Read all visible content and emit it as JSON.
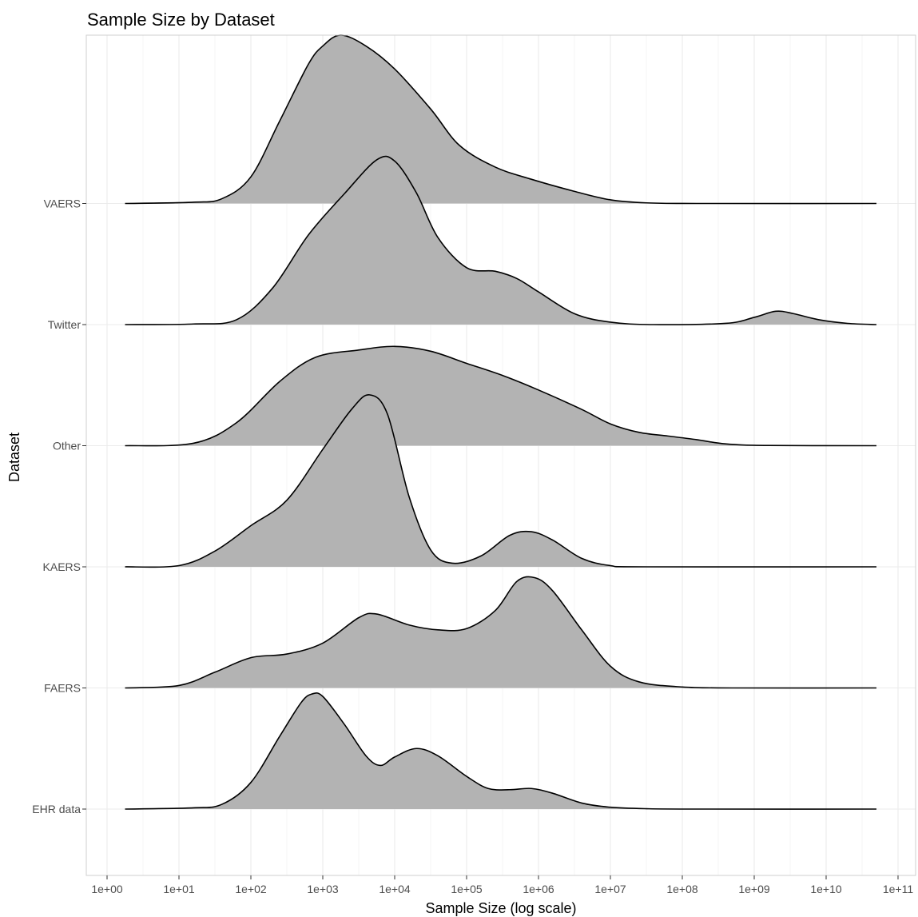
{
  "chart_data": {
    "type": "ridgeline",
    "title": "Sample Size by Dataset",
    "xlabel": "Sample Size (log scale)",
    "ylabel": "Dataset",
    "x_scale": "log10",
    "xlim": [
      0.7,
      11.2
    ],
    "x_ticks": [
      "1e+00",
      "1e+01",
      "1e+02",
      "1e+03",
      "1e+04",
      "1e+05",
      "1e+06",
      "1e+07",
      "1e+08",
      "1e+09",
      "1e+10",
      "1e+11"
    ],
    "grid": true,
    "fill_color": "#b3b3b3",
    "line_color": "#000000",
    "categories": [
      "EHR data",
      "FAERS",
      "KAERS",
      "Other",
      "Twitter",
      "VAERS"
    ],
    "series": [
      {
        "name": "EHR data",
        "points": [
          [
            0.25,
            0
          ],
          [
            1.2,
            0.01
          ],
          [
            1.6,
            0.04
          ],
          [
            2.0,
            0.22
          ],
          [
            2.4,
            0.6
          ],
          [
            2.7,
            0.88
          ],
          [
            2.85,
            0.95
          ],
          [
            3.0,
            0.93
          ],
          [
            3.3,
            0.7
          ],
          [
            3.6,
            0.44
          ],
          [
            3.8,
            0.36
          ],
          [
            4.0,
            0.43
          ],
          [
            4.3,
            0.5
          ],
          [
            4.6,
            0.44
          ],
          [
            5.0,
            0.27
          ],
          [
            5.3,
            0.17
          ],
          [
            5.6,
            0.16
          ],
          [
            5.9,
            0.17
          ],
          [
            6.2,
            0.13
          ],
          [
            6.6,
            0.05
          ],
          [
            7.0,
            0.015
          ],
          [
            7.5,
            0.003
          ],
          [
            8.2,
            0
          ],
          [
            10.7,
            0
          ]
        ]
      },
      {
        "name": "FAERS",
        "points": [
          [
            0.25,
            0
          ],
          [
            1.0,
            0.02
          ],
          [
            1.5,
            0.13
          ],
          [
            2.0,
            0.25
          ],
          [
            2.5,
            0.28
          ],
          [
            3.0,
            0.37
          ],
          [
            3.5,
            0.58
          ],
          [
            3.75,
            0.61
          ],
          [
            4.2,
            0.52
          ],
          [
            4.6,
            0.48
          ],
          [
            5.0,
            0.49
          ],
          [
            5.4,
            0.64
          ],
          [
            5.7,
            0.88
          ],
          [
            5.95,
            0.91
          ],
          [
            6.2,
            0.8
          ],
          [
            6.6,
            0.48
          ],
          [
            7.0,
            0.18
          ],
          [
            7.4,
            0.05
          ],
          [
            8.0,
            0.008
          ],
          [
            8.7,
            0
          ],
          [
            10.7,
            0
          ]
        ]
      },
      {
        "name": "KAERS",
        "points": [
          [
            0.25,
            0
          ],
          [
            1.0,
            0.01
          ],
          [
            1.5,
            0.13
          ],
          [
            2.0,
            0.34
          ],
          [
            2.5,
            0.55
          ],
          [
            3.0,
            0.97
          ],
          [
            3.4,
            1.3
          ],
          [
            3.65,
            1.42
          ],
          [
            3.9,
            1.26
          ],
          [
            4.2,
            0.58
          ],
          [
            4.5,
            0.14
          ],
          [
            4.8,
            0.03
          ],
          [
            5.2,
            0.09
          ],
          [
            5.6,
            0.26
          ],
          [
            5.9,
            0.29
          ],
          [
            6.2,
            0.22
          ],
          [
            6.6,
            0.07
          ],
          [
            7.0,
            0.01
          ],
          [
            7.5,
            0
          ],
          [
            10.7,
            0
          ]
        ]
      },
      {
        "name": "Other",
        "points": [
          [
            0.25,
            0
          ],
          [
            1.2,
            0.02
          ],
          [
            1.8,
            0.19
          ],
          [
            2.4,
            0.53
          ],
          [
            2.9,
            0.73
          ],
          [
            3.5,
            0.79
          ],
          [
            4.0,
            0.82
          ],
          [
            4.5,
            0.78
          ],
          [
            5.0,
            0.68
          ],
          [
            5.5,
            0.58
          ],
          [
            6.0,
            0.46
          ],
          [
            6.6,
            0.3
          ],
          [
            7.0,
            0.18
          ],
          [
            7.4,
            0.11
          ],
          [
            7.8,
            0.08
          ],
          [
            8.2,
            0.05
          ],
          [
            8.6,
            0.015
          ],
          [
            9.2,
            0.002
          ],
          [
            10.7,
            0
          ]
        ]
      },
      {
        "name": "Twitter",
        "points": [
          [
            0.25,
            0
          ],
          [
            1.2,
            0.005
          ],
          [
            1.8,
            0.04
          ],
          [
            2.3,
            0.3
          ],
          [
            2.8,
            0.74
          ],
          [
            3.3,
            1.08
          ],
          [
            3.75,
            1.36
          ],
          [
            4.0,
            1.35
          ],
          [
            4.3,
            1.09
          ],
          [
            4.6,
            0.72
          ],
          [
            5.0,
            0.47
          ],
          [
            5.4,
            0.44
          ],
          [
            5.7,
            0.38
          ],
          [
            6.0,
            0.27
          ],
          [
            6.5,
            0.09
          ],
          [
            7.0,
            0.02
          ],
          [
            7.6,
            0
          ],
          [
            8.6,
            0.01
          ],
          [
            9.0,
            0.06
          ],
          [
            9.3,
            0.11
          ],
          [
            9.55,
            0.09
          ],
          [
            9.9,
            0.04
          ],
          [
            10.3,
            0.01
          ],
          [
            10.7,
            0
          ]
        ]
      },
      {
        "name": "VAERS",
        "points": [
          [
            0.25,
            0
          ],
          [
            1.2,
            0.01
          ],
          [
            1.6,
            0.04
          ],
          [
            2.0,
            0.22
          ],
          [
            2.4,
            0.68
          ],
          [
            2.8,
            1.15
          ],
          [
            3.0,
            1.3
          ],
          [
            3.25,
            1.39
          ],
          [
            3.6,
            1.3
          ],
          [
            4.0,
            1.11
          ],
          [
            4.5,
            0.78
          ],
          [
            4.9,
            0.48
          ],
          [
            5.4,
            0.3
          ],
          [
            5.9,
            0.2
          ],
          [
            6.5,
            0.1
          ],
          [
            7.0,
            0.03
          ],
          [
            7.5,
            0.005
          ],
          [
            8.2,
            0
          ],
          [
            10.7,
            0
          ]
        ]
      }
    ]
  }
}
